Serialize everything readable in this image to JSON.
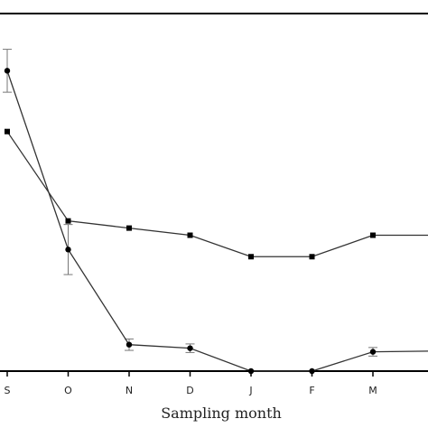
{
  "chart_data": {
    "type": "line",
    "title": "",
    "xlabel": "Sampling month",
    "ylabel": "",
    "categories": [
      "S",
      "O",
      "N",
      "D",
      "J",
      "F",
      "M",
      ""
    ],
    "series": [
      {
        "marker": "square",
        "values": [
          3.35,
          2.1,
          2.0,
          1.9,
          1.6,
          1.6,
          1.9,
          1.9
        ]
      },
      {
        "marker": "circle",
        "values": [
          4.2,
          1.7,
          0.37,
          0.32,
          0.0,
          0.0,
          0.27,
          0.28
        ],
        "error": [
          0.3,
          0.35,
          0.08,
          0.06,
          0.0,
          0.0,
          0.06,
          0.0
        ]
      }
    ],
    "ylim": [
      0,
      5.0
    ],
    "grid": false,
    "colors": {
      "line": "#333333",
      "marker": "#000000",
      "errorbar": "#777777"
    }
  }
}
